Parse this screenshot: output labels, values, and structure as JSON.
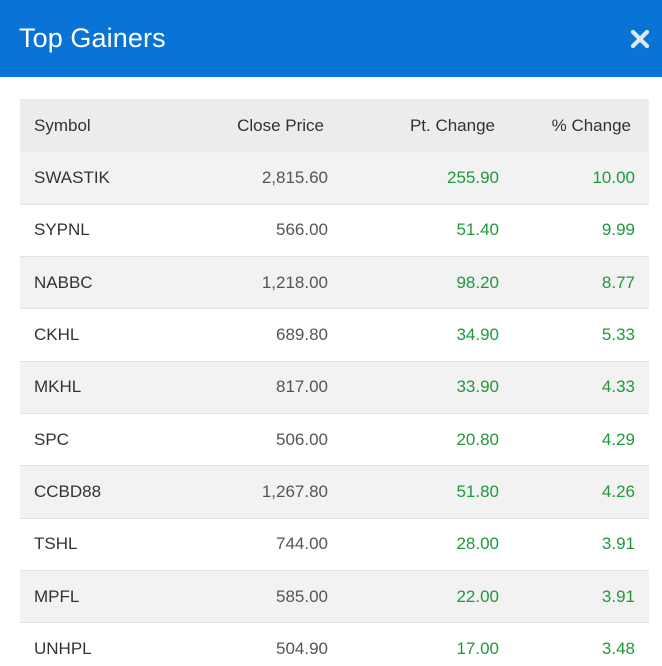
{
  "header": {
    "title": "Top Gainers",
    "close_icon": "close-icon"
  },
  "colors": {
    "header_bg": "#0a74d6",
    "gain": "#1e9a3a",
    "table_header_bg": "#ececec",
    "row_stripe": "#f2f2f2"
  },
  "table": {
    "columns": [
      "Symbol",
      "Close Price",
      "Pt. Change",
      "% Change"
    ],
    "rows": [
      {
        "symbol": "SWASTIK",
        "close": "2,815.60",
        "pt": "255.90",
        "pct": "10.00"
      },
      {
        "symbol": "SYPNL",
        "close": "566.00",
        "pt": "51.40",
        "pct": "9.99"
      },
      {
        "symbol": "NABBC",
        "close": "1,218.00",
        "pt": "98.20",
        "pct": "8.77"
      },
      {
        "symbol": "CKHL",
        "close": "689.80",
        "pt": "34.90",
        "pct": "5.33"
      },
      {
        "symbol": "MKHL",
        "close": "817.00",
        "pt": "33.90",
        "pct": "4.33"
      },
      {
        "symbol": "SPC",
        "close": "506.00",
        "pt": "20.80",
        "pct": "4.29"
      },
      {
        "symbol": "CCBD88",
        "close": "1,267.80",
        "pt": "51.80",
        "pct": "4.26"
      },
      {
        "symbol": "TSHL",
        "close": "744.00",
        "pt": "28.00",
        "pct": "3.91"
      },
      {
        "symbol": "MPFL",
        "close": "585.00",
        "pt": "22.00",
        "pct": "3.91"
      },
      {
        "symbol": "UNHPL",
        "close": "504.90",
        "pt": "17.00",
        "pct": "3.48"
      }
    ]
  }
}
